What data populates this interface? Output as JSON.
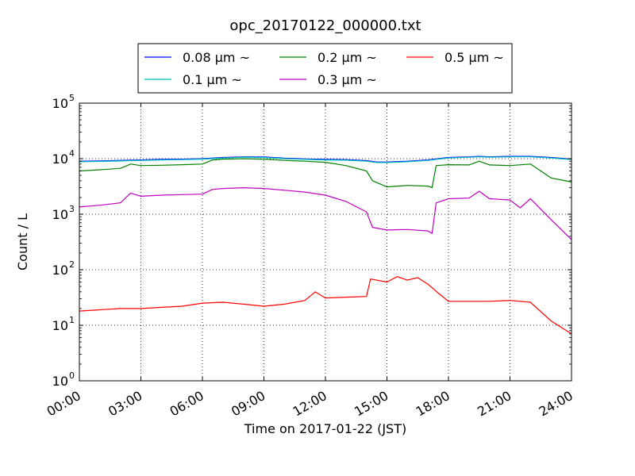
{
  "chart_data": {
    "type": "line",
    "title": "opc_20170122_000000.txt",
    "xlabel": "Time on 2017-01-22 (JST)",
    "ylabel": "Count / L",
    "x_unit": "hours",
    "xlim": [
      0,
      24
    ],
    "x_ticks": [
      0,
      3,
      6,
      9,
      12,
      15,
      18,
      21,
      24
    ],
    "x_tick_labels": [
      "00:00",
      "03:00",
      "06:00",
      "09:00",
      "12:00",
      "15:00",
      "18:00",
      "21:00",
      "24:00"
    ],
    "yscale": "log",
    "ylim": [
      1,
      100000
    ],
    "y_ticks": [
      1,
      10,
      100,
      1000,
      10000,
      100000
    ],
    "y_tick_labels": [
      {
        "base": "10",
        "exp": "0"
      },
      {
        "base": "10",
        "exp": "1"
      },
      {
        "base": "10",
        "exp": "2"
      },
      {
        "base": "10",
        "exp": "3"
      },
      {
        "base": "10",
        "exp": "4"
      },
      {
        "base": "10",
        "exp": "5"
      }
    ],
    "grid": true,
    "grid_style": "dotted",
    "legend_position": "top-center",
    "series": [
      {
        "name": "0.08 μm ~",
        "color": "#0000ff",
        "x": [
          0,
          1,
          2,
          3,
          4,
          5,
          6,
          7,
          8,
          9,
          10,
          11,
          12,
          13,
          14,
          14.5,
          15,
          16,
          17,
          17.5,
          18,
          19,
          19.5,
          20,
          21,
          22,
          23,
          24
        ],
        "values": [
          9000,
          9100,
          9300,
          9500,
          9700,
          9800,
          10000,
          10500,
          10800,
          10700,
          10200,
          9900,
          9700,
          9600,
          9200,
          8700,
          8700,
          9000,
          9500,
          10000,
          10500,
          10800,
          11000,
          10800,
          11000,
          11000,
          10500,
          9800
        ]
      },
      {
        "name": "0.1 μm ~",
        "color": "#00bfbf",
        "x": [
          0,
          1,
          2,
          3,
          4,
          5,
          6,
          7,
          8,
          9,
          10,
          11,
          12,
          13,
          14,
          14.5,
          15,
          16,
          17,
          17.5,
          18,
          19,
          19.5,
          20,
          21,
          22,
          23,
          24
        ],
        "values": [
          8800,
          8900,
          9100,
          9300,
          9500,
          9600,
          9800,
          10300,
          10600,
          10500,
          10000,
          9700,
          9500,
          9400,
          9000,
          8500,
          8500,
          8800,
          9300,
          9800,
          10300,
          10600,
          10800,
          10600,
          10800,
          10800,
          10300,
          9600
        ]
      },
      {
        "name": "0.2 μm ~",
        "color": "#008000",
        "x": [
          0,
          1,
          2,
          2.5,
          3,
          4,
          5,
          6,
          6.5,
          7,
          8,
          9,
          10,
          11,
          12,
          13,
          14,
          14.3,
          15,
          16,
          17,
          17.2,
          17.4,
          18,
          19,
          19.5,
          20,
          21,
          22,
          22.5,
          23,
          24
        ],
        "values": [
          6000,
          6300,
          6700,
          8000,
          7500,
          7600,
          7800,
          8000,
          9500,
          9800,
          10000,
          9800,
          9300,
          9000,
          8600,
          7500,
          6000,
          4000,
          3100,
          3300,
          3200,
          3000,
          7500,
          7800,
          7700,
          9000,
          7700,
          7500,
          8000,
          6000,
          4500,
          3800
        ]
      },
      {
        "name": "0.3 μm ~",
        "color": "#bf00bf",
        "x": [
          0,
          1,
          2,
          2.5,
          3,
          4,
          5,
          6,
          6.5,
          7,
          8,
          9,
          10,
          11,
          12,
          13,
          14,
          14.3,
          15,
          16,
          17,
          17.2,
          17.4,
          18,
          19,
          19.5,
          20,
          21,
          21.5,
          22,
          23,
          24
        ],
        "values": [
          1350,
          1450,
          1600,
          2400,
          2100,
          2200,
          2250,
          2300,
          2800,
          2900,
          3000,
          2900,
          2700,
          2500,
          2200,
          1700,
          1100,
          580,
          520,
          530,
          500,
          450,
          1600,
          1900,
          1950,
          2600,
          1900,
          1800,
          1300,
          1900,
          800,
          350
        ]
      },
      {
        "name": "0.5 μm ~",
        "color": "#ff0000",
        "x": [
          0,
          1,
          2,
          3,
          4,
          5,
          6,
          7,
          8,
          9,
          10,
          11,
          11.5,
          12,
          13,
          14,
          14.2,
          15,
          15.5,
          16,
          16.5,
          17,
          17.5,
          18,
          19,
          20,
          21,
          22,
          23,
          24
        ],
        "values": [
          18,
          19,
          20,
          20,
          21,
          22,
          25,
          26,
          24,
          22,
          24,
          28,
          40,
          31,
          32,
          33,
          68,
          60,
          75,
          65,
          72,
          55,
          38,
          27,
          27,
          27,
          28,
          26,
          12,
          7
        ]
      }
    ]
  }
}
